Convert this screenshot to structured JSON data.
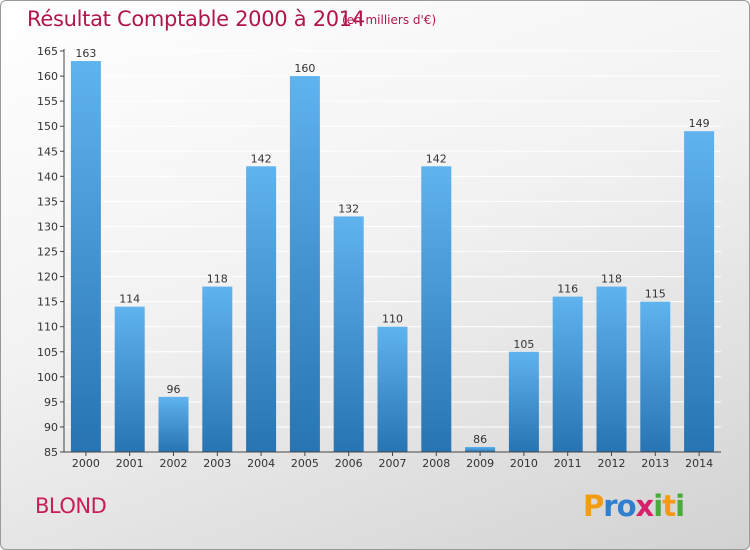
{
  "page": {
    "title": "Résultat Comptable 2000 à 2014",
    "subtitle": "(en milliers d'€)",
    "commune": "BLOND",
    "logo": {
      "text": "Proxiti",
      "letters": [
        {
          "ch": "P",
          "color": "#f39c12"
        },
        {
          "ch": "r",
          "color": "#2e7fd0"
        },
        {
          "ch": "o",
          "color": "#2e7fd0"
        },
        {
          "ch": "x",
          "color": "#d6226b"
        },
        {
          "ch": "i",
          "color": "#4aaa3c"
        },
        {
          "ch": "t",
          "color": "#f39c12"
        },
        {
          "ch": "i",
          "color": "#4aaa3c"
        }
      ]
    }
  },
  "colors": {
    "title": "#b0164d",
    "bar_top": "#5fb3ee",
    "bar_bottom": "#2874b3",
    "grid": "#ffffff",
    "axis": "#444444"
  },
  "chart_data": {
    "type": "bar",
    "title": "Résultat Comptable 2000 à 2014",
    "subtitle": "(en milliers d'€)",
    "xlabel": "",
    "ylabel": "",
    "categories": [
      "2000",
      "2001",
      "2002",
      "2003",
      "2004",
      "2005",
      "2006",
      "2007",
      "2008",
      "2009",
      "2010",
      "2011",
      "2012",
      "2013",
      "2014"
    ],
    "values": [
      163,
      114,
      96,
      118,
      142,
      160,
      132,
      110,
      142,
      86,
      105,
      116,
      118,
      115,
      149
    ],
    "ylim": [
      85,
      165
    ],
    "yticks": [
      85,
      90,
      95,
      100,
      105,
      110,
      115,
      120,
      125,
      130,
      135,
      140,
      145,
      150,
      155,
      160,
      165
    ],
    "grid": true,
    "data_labels": true
  }
}
